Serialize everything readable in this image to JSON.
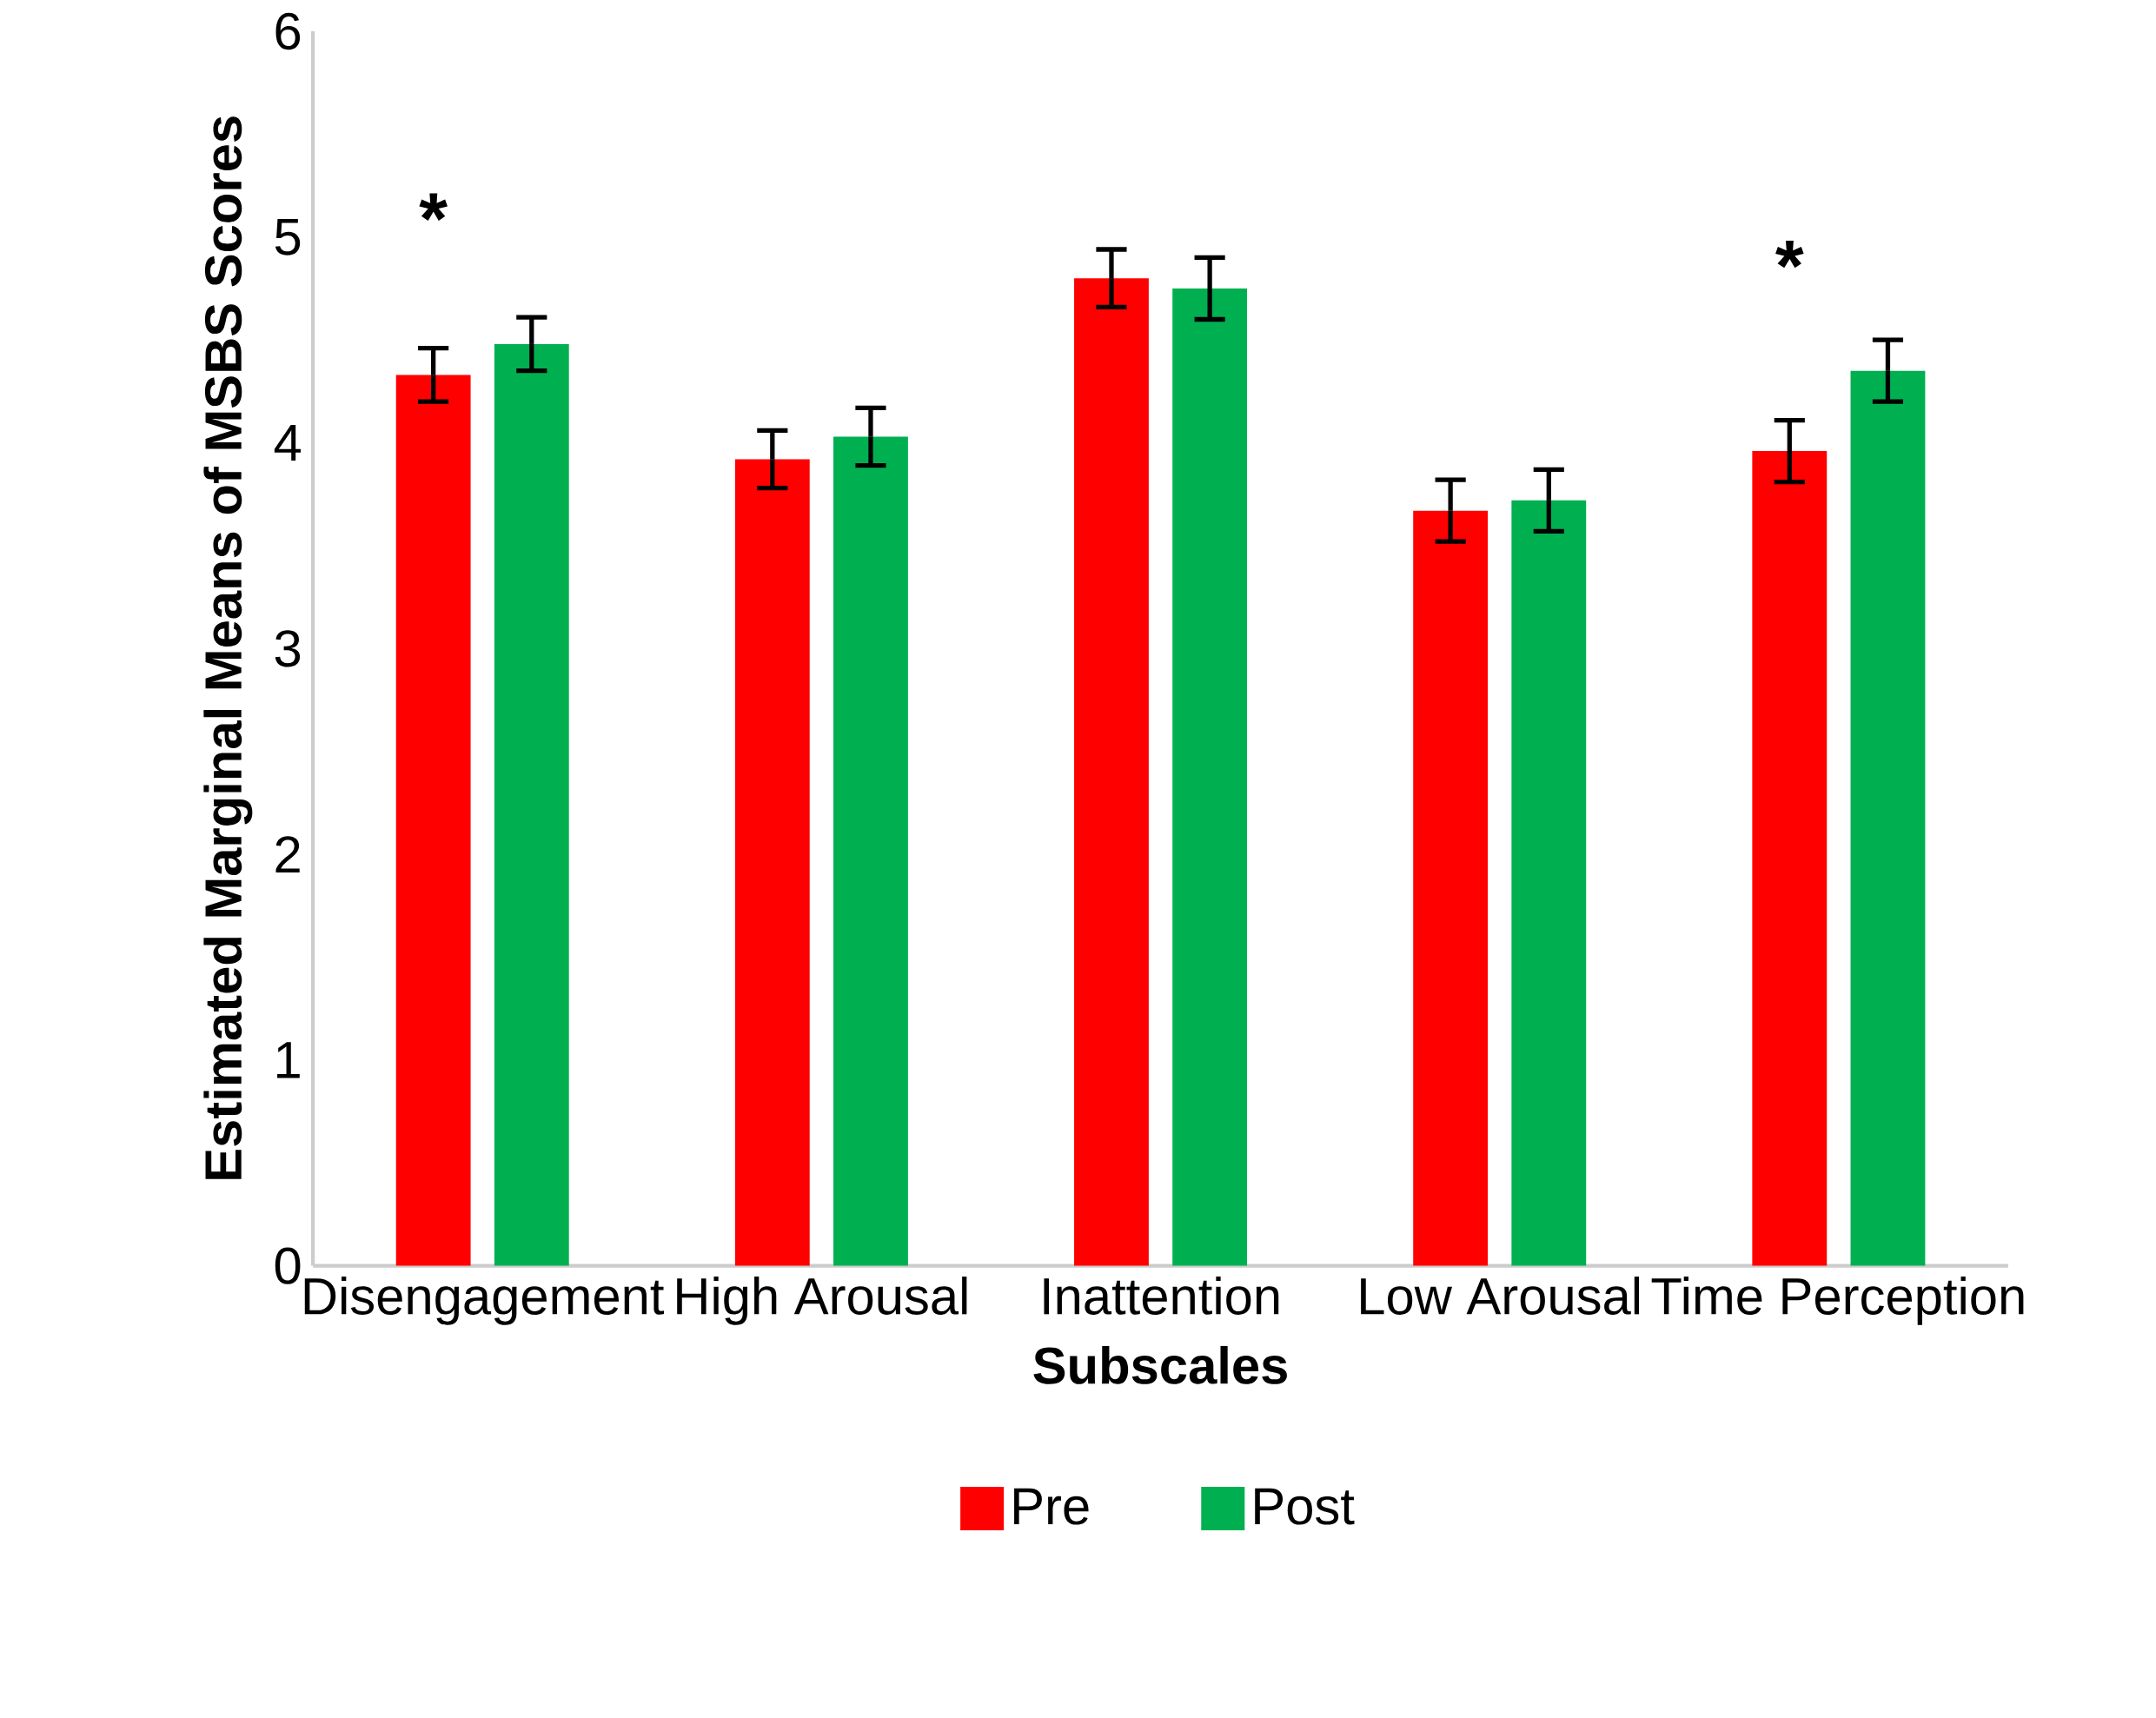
{
  "chart_data": {
    "type": "bar",
    "xlabel": "Subscales",
    "ylabel": "Estimated Marginal Means of MSBS Scores",
    "categories": [
      "Disengagement",
      "High Arousal",
      "Inattention",
      "Low Arousal",
      "Time Perception"
    ],
    "series": [
      {
        "name": "Pre",
        "color": "#ff0000",
        "values": [
          4.33,
          3.92,
          4.8,
          3.67,
          3.96
        ],
        "errors": [
          0.13,
          0.14,
          0.14,
          0.15,
          0.15
        ]
      },
      {
        "name": "Post",
        "color": "#00b050",
        "values": [
          4.48,
          4.03,
          4.75,
          3.72,
          4.35
        ],
        "errors": [
          0.13,
          0.14,
          0.15,
          0.15,
          0.15
        ]
      }
    ],
    "ylim": [
      0,
      6
    ],
    "yticks": [
      0,
      1,
      2,
      3,
      4,
      5,
      6
    ],
    "grid": false,
    "legend": "bottom",
    "annotations": [
      "*",
      "*"
    ]
  }
}
